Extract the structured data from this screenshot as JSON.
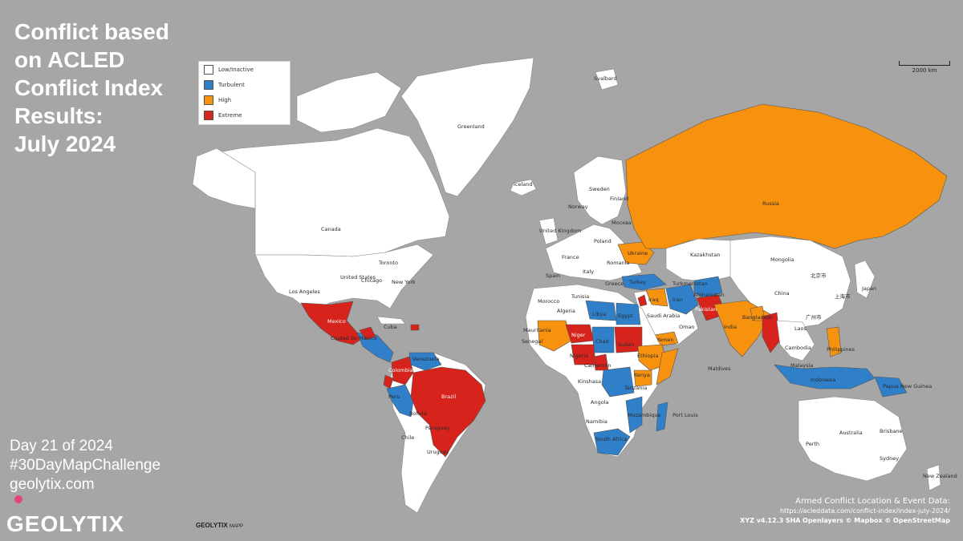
{
  "title_lines": [
    "Conflict based",
    "on ACLED",
    "Conflict Index",
    "Results:",
    "July 2024"
  ],
  "legend": [
    {
      "label": "Low/Inactive",
      "color": "#ffffff"
    },
    {
      "label": "Turbulent",
      "color": "#2f7fc9"
    },
    {
      "label": "High",
      "color": "#f7920e"
    },
    {
      "label": "Extreme",
      "color": "#d6231c"
    }
  ],
  "scale_label": "2000 km",
  "footer": {
    "day": "Day 21 of 2024",
    "hashtag": "#30DayMapChallenge",
    "site": "geolytix.com"
  },
  "brand": "GEOLYTIX",
  "mapp_badge": {
    "name": "GEOLYTIX",
    "suffix": "MAPP"
  },
  "attribution": {
    "title": "Armed Conflict Location & Event Data:",
    "url": "https://acleddata.com/conflict-index/index-july-2024/",
    "credits": [
      "XYZ v4.12.3",
      "SHA",
      "Openlayers",
      "© Mapbox",
      "© OpenStreetMap"
    ]
  },
  "colors": {
    "ocean": "#a6a6a6",
    "land": "#ffffff",
    "turbulent": "#2f7fc9",
    "high": "#f7920e",
    "extreme": "#d6231c"
  },
  "map_labels": [
    "Greenland",
    "Svalbard",
    "Iceland",
    "Canada",
    "United States",
    "Toronto",
    "Chicago",
    "New York",
    "Los Angeles",
    "Mexico",
    "Ciudad de México",
    "Cuba",
    "Venezuela",
    "Colombia",
    "Peru",
    "Brazil",
    "Bolivia",
    "Chile",
    "Paraguay",
    "Uruguay",
    "Sweden",
    "Finland",
    "Norway",
    "United Kingdom",
    "Poland",
    "France",
    "Spain",
    "Italy",
    "Ukraine",
    "Romania",
    "Greece",
    "Turkey",
    "Москва",
    "Russia",
    "Kazakhstan",
    "Mongolia",
    "Turkmenistan",
    "Iran",
    "Iraq",
    "Afghanistan",
    "Pakistan",
    "India",
    "Bangladesh",
    "China",
    "北京市",
    "上海市",
    "广州市",
    "Japan",
    "Laos",
    "Cambodia",
    "Philippines",
    "Malaysia",
    "Indonesia",
    "Papua New Guinea",
    "Australia",
    "Brisbane",
    "Perth",
    "Sydney",
    "New Zealand",
    "Morocco",
    "Algeria",
    "Tunisia",
    "Libya",
    "Egypt",
    "Saudi Arabia",
    "Oman",
    "Yemen",
    "Sudan",
    "Chad",
    "Niger",
    "Mauritania",
    "Senegal",
    "Nigeria",
    "Cameroon",
    "Ethiopia",
    "Kenya",
    "Tanzania",
    "Kinshasa",
    "Angola",
    "Namibia",
    "Mozambique",
    "South Africa",
    "Port Louis",
    "Maldives"
  ]
}
